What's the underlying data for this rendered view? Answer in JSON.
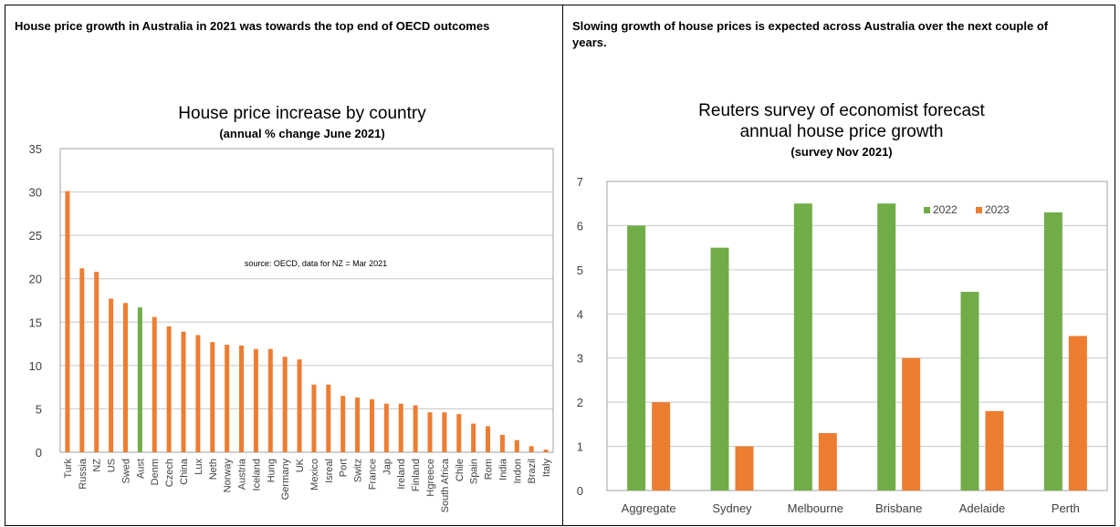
{
  "panels": {
    "left_heading": "House price growth in Australia in 2021 was towards the top end of OECD outcomes",
    "right_heading": "Slowing growth of house prices is expected across Australia over the next couple of years."
  },
  "colors": {
    "bar": "#ED7D31",
    "highlight": "#70AD47",
    "grid": "#C8C8C8",
    "axis_text": "#404040"
  },
  "chart_data": [
    {
      "type": "bar",
      "title": "House price increase by country",
      "subtitle": "(annual % change June 2021)",
      "annotation": "source:  OECD, data for NZ = Mar 2021",
      "ylim": [
        0,
        35
      ],
      "yticks": [
        0,
        5,
        10,
        15,
        20,
        25,
        30,
        35
      ],
      "grid": true,
      "highlight_category": "Aust",
      "categories": [
        "Turk",
        "Russia",
        "NZ",
        "US",
        "Swed",
        "Aust",
        "Denm",
        "Czech",
        "China",
        "Lux",
        "Neth",
        "Norway",
        "Austria",
        "Iceland",
        "Hung",
        "Germany",
        "UK",
        "Mexico",
        "Isreal",
        "Port",
        "Switz",
        "France",
        "Jap",
        "Ireland",
        "Finland",
        "Hgreece",
        "South Africa",
        "Chile",
        "Spain",
        "Rom",
        "India",
        "Indon",
        "Brazil",
        "Italy"
      ],
      "values": [
        30.1,
        21.2,
        20.8,
        17.7,
        17.2,
        16.7,
        15.6,
        14.5,
        13.9,
        13.5,
        12.7,
        12.4,
        12.3,
        11.9,
        11.9,
        11.0,
        10.7,
        7.8,
        7.8,
        6.5,
        6.3,
        6.1,
        5.6,
        5.6,
        5.4,
        4.6,
        4.6,
        4.4,
        3.3,
        3.0,
        2.0,
        1.4,
        0.7,
        0.3
      ]
    },
    {
      "type": "bar",
      "title": "Reuters survey of economist forecast annual house price growth",
      "subtitle": "(survey  Nov 2021)",
      "ylim": [
        0,
        7
      ],
      "yticks": [
        0,
        1,
        2,
        3,
        4,
        5,
        6,
        7
      ],
      "grid": true,
      "legend_position": "top-right",
      "categories": [
        "Aggregate",
        "Sydney",
        "Melbourne",
        "Brisbane",
        "Adelaide",
        "Perth"
      ],
      "series": [
        {
          "name": "2022",
          "color": "#70AD47",
          "values": [
            6.0,
            5.5,
            6.5,
            6.5,
            4.5,
            6.3
          ]
        },
        {
          "name": "2023",
          "color": "#ED7D31",
          "values": [
            2.0,
            1.0,
            1.3,
            3.0,
            1.8,
            3.5
          ]
        }
      ]
    }
  ]
}
